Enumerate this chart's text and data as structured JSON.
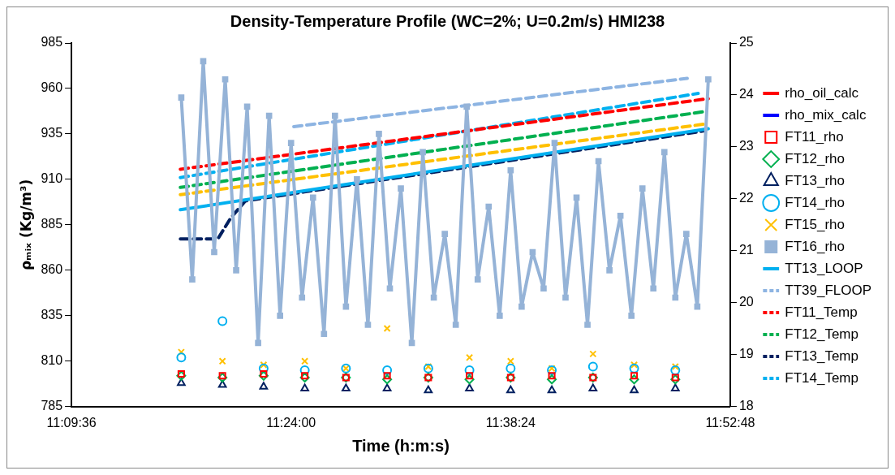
{
  "chart_data": {
    "type": "line",
    "title": "Density-Temperature Profile (WC=2%; U=0.2m/s) HMI238",
    "xlabel": "Time (h:m:s)",
    "ylabel": "ρₘᵢₓ (Kg/m³)",
    "xlim": [
      11.16,
      11.88
    ],
    "xticks": [
      {
        "value": 11.16,
        "label": "11:09:36"
      },
      {
        "value": 11.4,
        "label": "11:24:00"
      },
      {
        "value": 11.64,
        "label": "11:38:24"
      },
      {
        "value": 11.88,
        "label": "11:52:48"
      }
    ],
    "ylim": [
      785,
      985
    ],
    "yticks": [
      785,
      810,
      835,
      860,
      885,
      910,
      935,
      960,
      985
    ],
    "y2lim": [
      18,
      25
    ],
    "y2ticks": [
      18,
      19,
      20,
      21,
      22,
      23,
      24,
      25
    ],
    "grid": false,
    "legend": "right",
    "series": [
      {
        "name": "rho_oil_calc",
        "type": "line",
        "color": "#ff0000",
        "marker": "none",
        "line_style": "solid"
      },
      {
        "name": "rho_mix_calc",
        "type": "line",
        "color": "#0000ff",
        "marker": "none",
        "line_style": "solid"
      },
      {
        "name": "FT11_rho",
        "type": "scatter",
        "color": "#ff0000",
        "marker": "square",
        "x": [
          11.28,
          11.325,
          11.37,
          11.415,
          11.46,
          11.505,
          11.55,
          11.595,
          11.64,
          11.685,
          11.73,
          11.775,
          11.82
        ],
        "values": [
          803,
          802,
          803,
          802,
          801,
          802,
          801,
          802,
          801,
          802,
          801,
          802,
          801
        ]
      },
      {
        "name": "FT12_rho",
        "type": "scatter",
        "color": "#00b050",
        "marker": "diamond",
        "x": [
          11.28,
          11.325,
          11.37,
          11.415,
          11.46,
          11.505,
          11.55,
          11.595,
          11.64,
          11.685,
          11.73,
          11.775,
          11.82
        ],
        "values": [
          802,
          801,
          802,
          801,
          801,
          800,
          801,
          800,
          801,
          800,
          801,
          800,
          800
        ]
      },
      {
        "name": "FT13_rho",
        "type": "scatter",
        "color": "#002060",
        "marker": "triangle",
        "x": [
          11.28,
          11.325,
          11.37,
          11.415,
          11.46,
          11.505,
          11.55,
          11.595,
          11.64,
          11.685,
          11.73,
          11.775,
          11.82
        ],
        "values": [
          798,
          797,
          796,
          795,
          795,
          795,
          794,
          795,
          794,
          794,
          795,
          794,
          795
        ]
      },
      {
        "name": "FT14_rho",
        "type": "scatter",
        "color": "#00b0f0",
        "marker": "circle",
        "x": [
          11.28,
          11.325,
          11.37,
          11.415,
          11.46,
          11.505,
          11.55,
          11.595,
          11.64,
          11.685,
          11.73,
          11.775,
          11.82
        ],
        "values": [
          812,
          832,
          806,
          805,
          806,
          805,
          806,
          805,
          806,
          805,
          807,
          806,
          805
        ]
      },
      {
        "name": "FT15_rho",
        "type": "scatter",
        "color": "#ffc000",
        "marker": "cross",
        "x": [
          11.28,
          11.325,
          11.37,
          11.415,
          11.46,
          11.505,
          11.55,
          11.595,
          11.64,
          11.685,
          11.73,
          11.775,
          11.82
        ],
        "values": [
          815,
          810,
          808,
          810,
          806,
          828,
          807,
          812,
          810,
          806,
          814,
          808,
          807
        ]
      },
      {
        "name": "FT16_rho",
        "type": "line",
        "color": "#95b3d7",
        "marker": "square",
        "line_style": "solid",
        "x": [
          11.28,
          11.292,
          11.304,
          11.316,
          11.328,
          11.34,
          11.352,
          11.364,
          11.376,
          11.388,
          11.4,
          11.412,
          11.424,
          11.436,
          11.448,
          11.46,
          11.472,
          11.484,
          11.496,
          11.508,
          11.52,
          11.532,
          11.544,
          11.556,
          11.568,
          11.58,
          11.592,
          11.604,
          11.616,
          11.628,
          11.64,
          11.652,
          11.664,
          11.676,
          11.688,
          11.7,
          11.712,
          11.724,
          11.736,
          11.748,
          11.76,
          11.772,
          11.784,
          11.796,
          11.808,
          11.82,
          11.832,
          11.844,
          11.856
        ],
        "values": [
          955,
          855,
          975,
          870,
          965,
          860,
          950,
          820,
          945,
          835,
          930,
          845,
          900,
          825,
          945,
          840,
          910,
          830,
          935,
          850,
          905,
          820,
          925,
          845,
          880,
          830,
          950,
          855,
          895,
          835,
          915,
          840,
          870,
          850,
          930,
          845,
          900,
          830,
          920,
          860,
          890,
          835,
          905,
          850,
          925,
          845,
          880,
          840,
          965
        ]
      },
      {
        "name": "TT13_LOOP",
        "type": "line",
        "axis": "y2",
        "color": "#00b0f0",
        "marker": "none",
        "line_style": "solid",
        "x": [
          11.279,
          11.856
        ],
        "values": [
          21.79,
          23.35
        ]
      },
      {
        "name": "TT39_FLOOP",
        "type": "line",
        "axis": "y2",
        "color": "#8db4e2",
        "marker": "none",
        "line_style": "dashed",
        "x": [
          11.403,
          11.833
        ],
        "values": [
          23.39,
          24.32
        ]
      },
      {
        "name": "FT11_Temp",
        "type": "line",
        "axis": "y2",
        "color": "#ff0000",
        "marker": "none",
        "line_style": "dashed",
        "x": [
          11.279,
          11.856
        ],
        "values": [
          22.57,
          23.93
        ]
      },
      {
        "name": "FT12_Temp",
        "type": "line",
        "axis": "y2",
        "color": "#00b050",
        "marker": "none",
        "line_style": "dashed",
        "x": [
          11.279,
          11.852
        ],
        "values": [
          22.22,
          23.68
        ]
      },
      {
        "name": "FT13_Temp",
        "type": "line",
        "axis": "y2",
        "color": "#002060",
        "marker": "none",
        "line_style": "dashed",
        "x": [
          11.279,
          11.32,
          11.334,
          11.35,
          11.852
        ],
        "values": [
          21.23,
          21.23,
          21.63,
          21.96,
          23.31
        ]
      },
      {
        "name": "FT14_Temp",
        "type": "line",
        "axis": "y2",
        "color": "#00b0f0",
        "marker": "none",
        "line_style": "dashed",
        "x": [
          11.279,
          11.845
        ],
        "values": [
          22.41,
          24.03
        ]
      },
      {
        "type": "line",
        "axis": "y2",
        "color": "#ffc000",
        "marker": "none",
        "line_style": "dashed",
        "x": [
          11.279,
          11.852
        ],
        "values": [
          22.08,
          23.44
        ]
      }
    ]
  }
}
